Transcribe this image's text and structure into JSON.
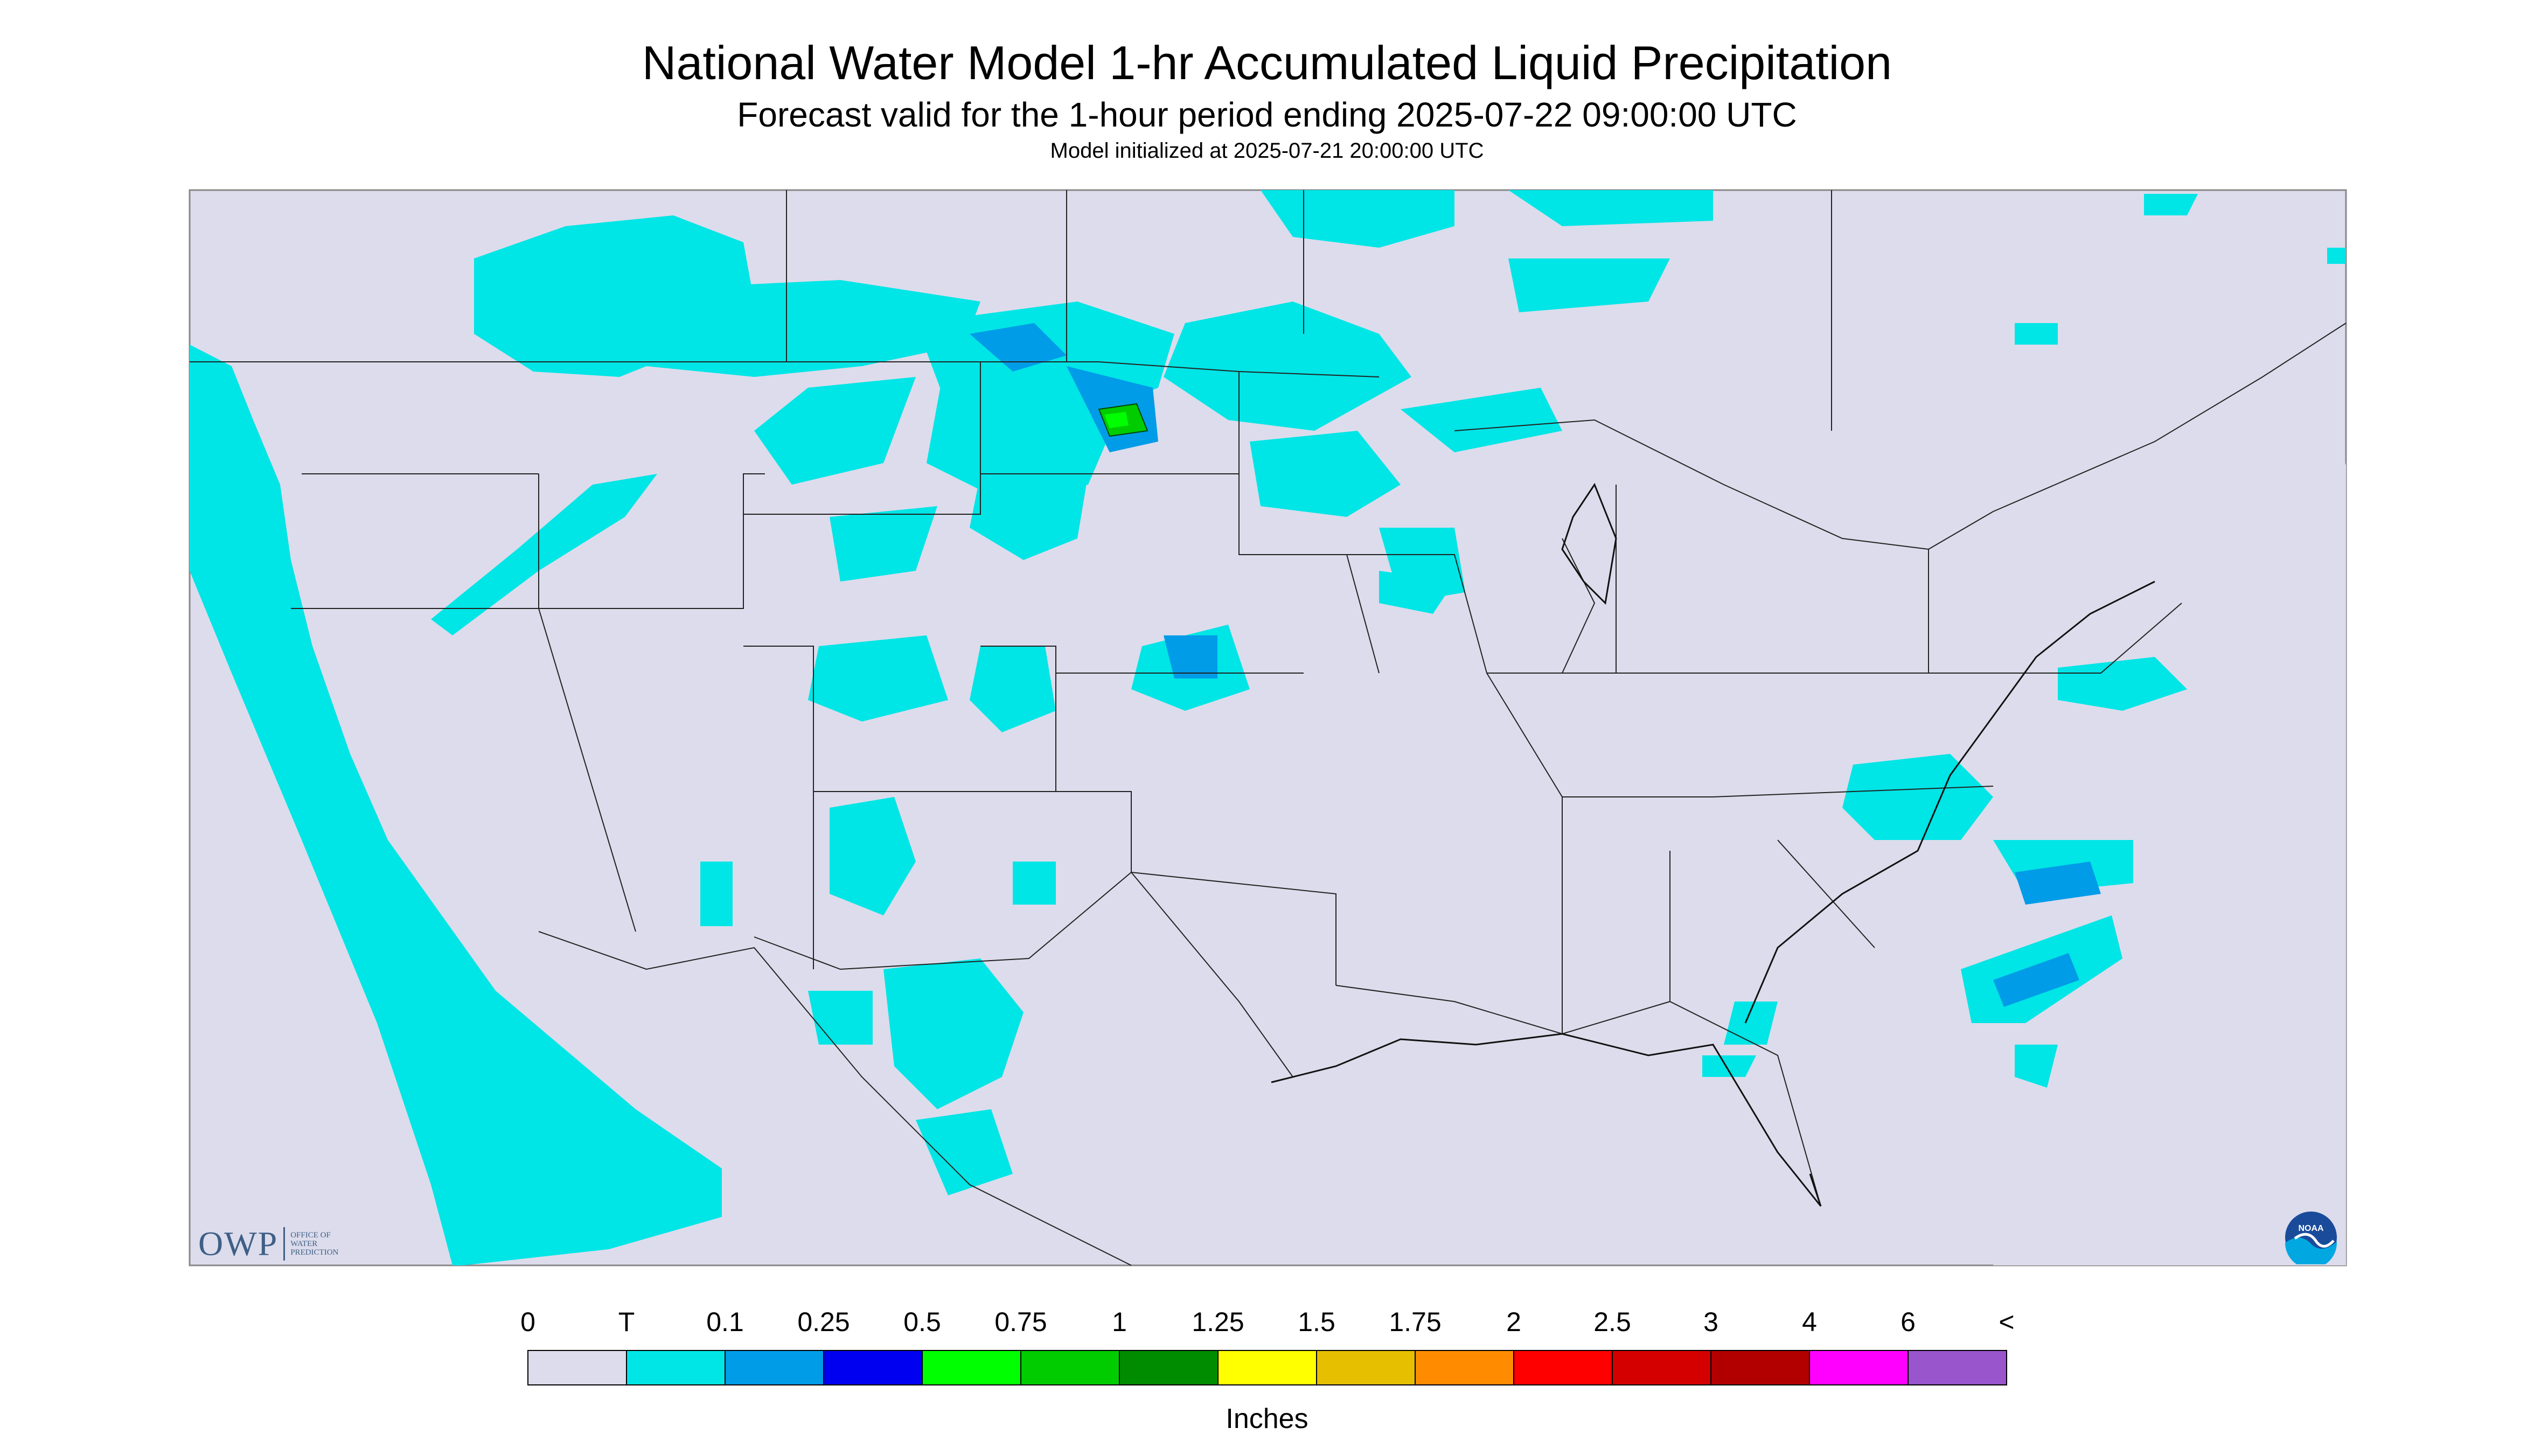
{
  "header": {
    "title": "National Water Model 1-hr Accumulated Liquid Precipitation",
    "subtitle": "Forecast valid for the 1-hour period ending 2025-07-22 09:00:00 UTC",
    "init_line": "Model initialized at 2025-07-21 20:00:00 UTC"
  },
  "map": {
    "background_color": "#dcdcec",
    "precip_light_color": "#00e5e5",
    "region": "Continental United States"
  },
  "logos": {
    "owp_letters": "OWP",
    "owp_subtext": "OFFICE OF WATER PREDICTION",
    "noaa_text": "NOAA",
    "owp_icon": "owp-logo",
    "noaa_icon": "noaa-logo"
  },
  "legend": {
    "units": "Inches",
    "labels": [
      "0",
      "T",
      "0.1",
      "0.25",
      "0.5",
      "0.75",
      "1",
      "1.25",
      "1.5",
      "1.75",
      "2",
      "2.5",
      "3",
      "4",
      "6",
      "<"
    ],
    "colors": [
      "#dcdcec",
      "#00e5e5",
      "#009ce8",
      "#0000f0",
      "#00ff00",
      "#00cc00",
      "#008c00",
      "#ffff00",
      "#e5bf00",
      "#ff8c00",
      "#ff0000",
      "#d40000",
      "#b20000",
      "#ff00ff",
      "#9955cc"
    ]
  }
}
